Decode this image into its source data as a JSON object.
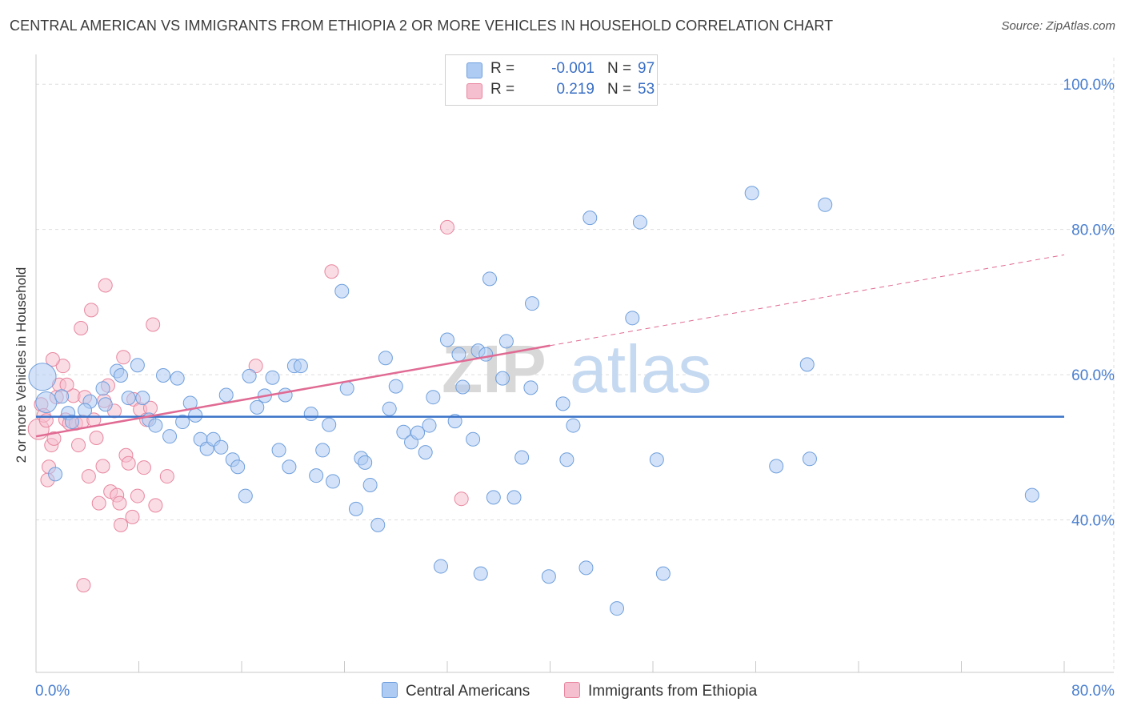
{
  "header": {
    "title": "CENTRAL AMERICAN VS IMMIGRANTS FROM ETHIOPIA 2 OR MORE VEHICLES IN HOUSEHOLD CORRELATION CHART",
    "source": "Source: ZipAtlas.com"
  },
  "watermark": {
    "part1": "ZIP",
    "part2": "atlas"
  },
  "legend": {
    "rows": [
      {
        "r_label": "R =",
        "r_value": "-0.001",
        "n_label": "N =",
        "n_value": "97"
      },
      {
        "r_label": "R =",
        "r_value": "0.219",
        "n_label": "N =",
        "n_value": "53"
      }
    ]
  },
  "colors": {
    "blue_fill": "#aecbf3",
    "blue_stroke": "#6f9fdc",
    "blue_line": "#3a72c8",
    "pink_fill": "#f6bfd0",
    "pink_stroke": "#e8879f",
    "pink_line": "#e06a93",
    "tick_label": "#4a7fcf",
    "grid": "#dddddd"
  },
  "chart_data": {
    "type": "scatter",
    "title": "CENTRAL AMERICAN VS IMMIGRANTS FROM ETHIOPIA 2 OR MORE VEHICLES IN HOUSEHOLD CORRELATION CHART",
    "xlabel": "",
    "ylabel": "2 or more Vehicles in Household",
    "xlim": [
      0,
      80
    ],
    "ylim": [
      19,
      103
    ],
    "x_tick_labels": [
      "0.0%",
      "80.0%"
    ],
    "y_ticks": [
      40,
      60,
      80,
      100
    ],
    "y_tick_labels": [
      "40.0%",
      "60.0%",
      "80.0%",
      "100.0%"
    ],
    "grid": true,
    "legend_position": "bottom-center",
    "series": [
      {
        "name": "Central Americans",
        "color": "#aecbf3",
        "trend": {
          "x": [
            0,
            80
          ],
          "y": [
            54.2,
            54.2
          ],
          "style": "solid"
        },
        "points": [
          [
            0.5,
            59.7,
            3
          ],
          [
            0.8,
            56.2,
            2
          ],
          [
            1.5,
            46.3,
            1
          ],
          [
            2.0,
            57.0,
            1
          ],
          [
            2.5,
            54.7,
            1
          ],
          [
            4.2,
            56.3,
            1
          ],
          [
            2.8,
            53.5,
            1
          ],
          [
            3.8,
            55.1,
            1
          ],
          [
            5.2,
            58.1,
            1
          ],
          [
            5.4,
            55.9,
            1
          ],
          [
            6.3,
            60.5,
            1
          ],
          [
            6.6,
            59.9,
            1
          ],
          [
            7.2,
            56.8,
            1
          ],
          [
            7.9,
            61.3,
            1
          ],
          [
            8.3,
            56.8,
            1
          ],
          [
            8.8,
            53.8,
            1
          ],
          [
            9.3,
            53.0,
            1
          ],
          [
            9.9,
            59.9,
            1
          ],
          [
            10.4,
            51.5,
            1
          ],
          [
            11.0,
            59.5,
            1
          ],
          [
            11.4,
            53.5,
            1
          ],
          [
            12.0,
            56.1,
            1
          ],
          [
            12.4,
            54.4,
            1
          ],
          [
            12.8,
            51.1,
            1
          ],
          [
            13.3,
            49.8,
            1
          ],
          [
            13.8,
            51.1,
            1
          ],
          [
            14.4,
            50.0,
            1
          ],
          [
            14.8,
            57.2,
            1
          ],
          [
            15.3,
            48.3,
            1
          ],
          [
            15.7,
            47.3,
            1
          ],
          [
            16.3,
            43.3,
            1
          ],
          [
            16.6,
            59.8,
            1
          ],
          [
            17.2,
            55.5,
            1
          ],
          [
            17.8,
            57.1,
            1
          ],
          [
            18.4,
            59.6,
            1
          ],
          [
            18.9,
            49.6,
            1
          ],
          [
            19.4,
            57.2,
            1
          ],
          [
            19.7,
            47.3,
            1
          ],
          [
            20.1,
            61.2,
            1
          ],
          [
            20.6,
            61.2,
            1
          ],
          [
            21.4,
            54.6,
            1
          ],
          [
            21.8,
            46.1,
            1
          ],
          [
            22.3,
            49.6,
            1
          ],
          [
            22.8,
            53.1,
            1
          ],
          [
            23.1,
            45.3,
            1
          ],
          [
            23.8,
            71.5,
            1
          ],
          [
            24.2,
            58.1,
            1
          ],
          [
            24.9,
            41.5,
            1
          ],
          [
            25.3,
            48.5,
            1
          ],
          [
            25.6,
            47.9,
            1
          ],
          [
            26.0,
            44.8,
            1
          ],
          [
            26.6,
            39.3,
            1
          ],
          [
            27.2,
            62.3,
            1
          ],
          [
            27.5,
            55.3,
            1
          ],
          [
            28.0,
            58.4,
            1
          ],
          [
            28.6,
            52.1,
            1
          ],
          [
            29.2,
            50.7,
            1
          ],
          [
            29.7,
            52.0,
            1
          ],
          [
            30.3,
            49.3,
            1
          ],
          [
            30.6,
            53.0,
            1
          ],
          [
            30.9,
            56.9,
            1
          ],
          [
            31.5,
            33.6,
            1
          ],
          [
            32.0,
            64.8,
            1
          ],
          [
            32.6,
            53.6,
            1
          ],
          [
            32.9,
            62.8,
            1
          ],
          [
            33.2,
            58.3,
            1
          ],
          [
            34.0,
            51.1,
            1
          ],
          [
            34.6,
            32.6,
            1
          ],
          [
            34.4,
            63.3,
            1
          ],
          [
            35.0,
            62.8,
            1
          ],
          [
            35.3,
            73.2,
            1
          ],
          [
            35.6,
            43.1,
            1
          ],
          [
            36.3,
            59.5,
            1
          ],
          [
            36.6,
            64.6,
            1
          ],
          [
            37.2,
            43.1,
            1
          ],
          [
            37.8,
            48.6,
            1
          ],
          [
            38.6,
            69.8,
            1
          ],
          [
            38.5,
            58.2,
            1
          ],
          [
            39.9,
            32.2,
            1
          ],
          [
            41.0,
            56.0,
            1
          ],
          [
            41.3,
            48.3,
            1
          ],
          [
            41.8,
            53.0,
            1
          ],
          [
            42.8,
            33.4,
            1
          ],
          [
            43.1,
            81.6,
            1
          ],
          [
            45.2,
            27.8,
            1
          ],
          [
            46.4,
            67.8,
            1
          ],
          [
            47.0,
            81.0,
            1
          ],
          [
            48.3,
            48.3,
            1
          ],
          [
            48.8,
            32.6,
            1
          ],
          [
            55.7,
            85.0,
            1
          ],
          [
            57.6,
            47.4,
            1
          ],
          [
            60.0,
            61.4,
            1
          ],
          [
            60.2,
            48.4,
            1
          ],
          [
            61.4,
            83.4,
            1
          ],
          [
            77.5,
            43.4,
            1
          ]
        ]
      },
      {
        "name": "Immigrants from Ethiopia",
        "color": "#f6bfd0",
        "trend": {
          "x": [
            0,
            40
          ],
          "y": [
            51.5,
            64.0
          ],
          "style": "solid",
          "dashed_to": [
            80,
            76.5
          ]
        },
        "points": [
          [
            0.2,
            52.5,
            2
          ],
          [
            0.4,
            55.9,
            1
          ],
          [
            0.6,
            54.4,
            1
          ],
          [
            0.8,
            53.7,
            1
          ],
          [
            1.0,
            47.3,
            1
          ],
          [
            1.2,
            50.3,
            1
          ],
          [
            1.4,
            51.2,
            1
          ],
          [
            1.6,
            56.9,
            1
          ],
          [
            1.8,
            58.6,
            1
          ],
          [
            2.1,
            61.2,
            1
          ],
          [
            2.3,
            53.8,
            1
          ],
          [
            2.6,
            53.3,
            1
          ],
          [
            2.9,
            57.1,
            1
          ],
          [
            3.1,
            53.3,
            1
          ],
          [
            3.3,
            50.3,
            1
          ],
          [
            3.6,
            53.5,
            1
          ],
          [
            3.8,
            56.9,
            1
          ],
          [
            4.1,
            46.0,
            1
          ],
          [
            4.3,
            68.9,
            1
          ],
          [
            4.5,
            53.8,
            1
          ],
          [
            4.7,
            51.3,
            1
          ],
          [
            4.9,
            42.3,
            1
          ],
          [
            5.2,
            47.4,
            1
          ],
          [
            5.3,
            56.4,
            1
          ],
          [
            5.6,
            58.5,
            1
          ],
          [
            5.8,
            43.9,
            1
          ],
          [
            6.1,
            55.0,
            1
          ],
          [
            6.3,
            43.4,
            1
          ],
          [
            6.5,
            42.3,
            1
          ],
          [
            6.8,
            62.4,
            1
          ],
          [
            7.0,
            48.9,
            1
          ],
          [
            7.2,
            47.8,
            1
          ],
          [
            7.5,
            40.4,
            1
          ],
          [
            7.6,
            56.6,
            1
          ],
          [
            7.9,
            43.3,
            1
          ],
          [
            8.1,
            55.2,
            1
          ],
          [
            8.4,
            47.2,
            1
          ],
          [
            8.6,
            53.8,
            1
          ],
          [
            8.9,
            55.4,
            1
          ],
          [
            9.1,
            66.9,
            1
          ],
          [
            9.3,
            42.0,
            1
          ],
          [
            10.2,
            46.0,
            1
          ],
          [
            3.5,
            66.4,
            1
          ],
          [
            5.4,
            72.3,
            1
          ],
          [
            3.7,
            31.0,
            1
          ],
          [
            6.6,
            39.3,
            1
          ],
          [
            17.1,
            61.2,
            1
          ],
          [
            23.0,
            74.2,
            1
          ],
          [
            32.0,
            80.3,
            1
          ],
          [
            33.1,
            42.9,
            1
          ],
          [
            2.4,
            58.6,
            1
          ],
          [
            1.3,
            62.1,
            1
          ],
          [
            0.9,
            45.5,
            1
          ]
        ]
      }
    ]
  }
}
